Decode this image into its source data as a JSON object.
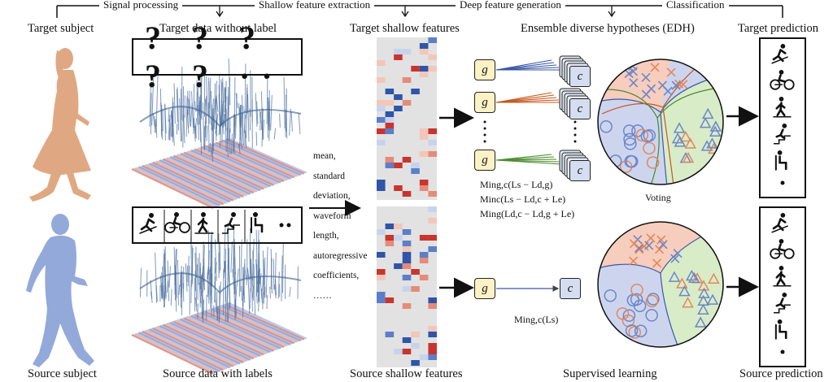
{
  "stages": [
    "Signal processing",
    "Shallow feature extraction",
    "Deep feature generation",
    "Classification"
  ],
  "labels": {
    "target_subject": "Target subject",
    "target_data": "Target data without label",
    "target_shallow": "Target shallow features",
    "edh": "Ensemble diverse hypotheses (EDH)",
    "target_prediction": "Target prediction",
    "source_subject": "Source subject",
    "source_data": "Source data with labels",
    "source_shallow": "Source shallow features",
    "supervised": "Supervised learning",
    "source_prediction": "Source prediction",
    "voting": "Voting"
  },
  "unknown_labels": "? ? ? ? ? ··",
  "features": [
    "mean,",
    "standard",
    "deviation,",
    "waveform",
    "length,",
    "autoregressive",
    "coefficients,",
    "……"
  ],
  "objectives": [
    "Min_{g,c}(L_s − L_{d,g})",
    "Min_c(L_s − L_{d,c} + L_e)",
    "Min_g(L_{d,c} − L_{d,g} + L_e)"
  ],
  "objective_text": [
    "Ming,c(Ls − Ld,g)",
    "Minc(Ls − Ld,c + Le)",
    "Ming(Ld,c − Ld,g + Le)"
  ],
  "source_objective": "Ming,c(Ls)",
  "generator_symbol": "g",
  "classifier_symbol": "c",
  "activity_icons": [
    "running-icon",
    "cycling-icon",
    "walking-icon",
    "stairs-icon",
    "sitting-icon"
  ],
  "colors": {
    "target_person": "#e0a882",
    "source_person": "#93a9d9",
    "surface": "#4a6f9f",
    "floor_red": "#e58b78",
    "floor_blue": "#8fa9dc",
    "generator_fill": "#fdf2c6",
    "classifier_fill": "#d5def0",
    "arrow_blue": "#3a57a8",
    "arrow_orange": "#c7571d",
    "arrow_green": "#4a8a2a",
    "region_red": "#f7cdbd",
    "region_blue": "#cdd5ee",
    "region_green": "#d9ecc8"
  }
}
